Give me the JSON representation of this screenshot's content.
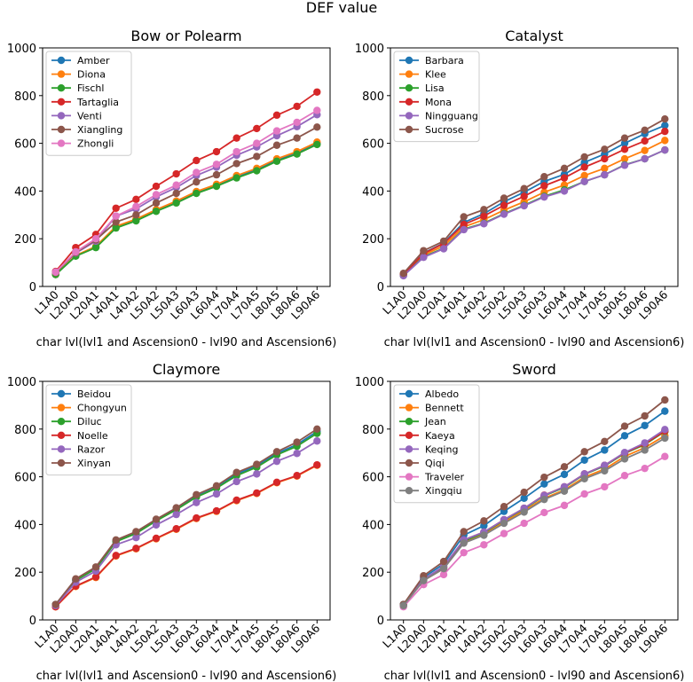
{
  "suptitle": "DEF value",
  "colors": [
    "#1f77b4",
    "#ff7f0e",
    "#2ca02c",
    "#d62728",
    "#9467bd",
    "#8c564b",
    "#e377c2",
    "#7f7f7f"
  ],
  "chart_data": [
    {
      "type": "line",
      "title": "Bow or Polearm",
      "xlabel": "char lvl(lvl1 and Ascension0 - lvl90 and Ascension6)",
      "ylabel": "",
      "ylim": [
        0,
        1000
      ],
      "yticks": [
        0,
        200,
        400,
        600,
        800,
        1000
      ],
      "legend": "upper-left",
      "x": [
        "L1A0",
        "L20A0",
        "L20A1",
        "L40A1",
        "L40A2",
        "L50A2",
        "L50A3",
        "L60A3",
        "L60A4",
        "L70A4",
        "L70A5",
        "L80A5",
        "L80A6",
        "L90A6"
      ],
      "series": [
        {
          "name": "Amber",
          "values": [
            50,
            128,
            165,
            250,
            280,
            320,
            355,
            395,
            425,
            462,
            490,
            530,
            560,
            600
          ]
        },
        {
          "name": "Diona",
          "values": [
            50,
            130,
            168,
            252,
            282,
            322,
            358,
            398,
            428,
            465,
            495,
            535,
            565,
            605
          ]
        },
        {
          "name": "Fischl",
          "values": [
            50,
            127,
            163,
            245,
            275,
            315,
            350,
            390,
            420,
            455,
            485,
            525,
            555,
            595
          ]
        },
        {
          "name": "Tartaglia",
          "values": [
            63,
            163,
            218,
            328,
            365,
            420,
            472,
            528,
            565,
            622,
            662,
            718,
            755,
            815
          ]
        },
        {
          "name": "Venti",
          "values": [
            60,
            140,
            190,
            295,
            325,
            375,
            415,
            465,
            500,
            550,
            585,
            632,
            670,
            720
          ]
        },
        {
          "name": "Xiangling",
          "values": [
            58,
            142,
            195,
            270,
            300,
            350,
            390,
            438,
            468,
            515,
            545,
            592,
            622,
            668
          ]
        },
        {
          "name": "Zhongli",
          "values": [
            60,
            145,
            200,
            295,
            335,
            385,
            425,
            478,
            512,
            565,
            600,
            652,
            688,
            738
          ]
        }
      ]
    },
    {
      "type": "line",
      "title": "Catalyst",
      "xlabel": "char lvl(lvl1 and Ascension0 - lvl90 and Ascension6)",
      "ylabel": "",
      "ylim": [
        0,
        1000
      ],
      "yticks": [
        0,
        200,
        400,
        600,
        800,
        1000
      ],
      "legend": "upper-left",
      "x": [
        "L1A0",
        "L20A0",
        "L20A1",
        "L40A1",
        "L40A2",
        "L50A2",
        "L50A3",
        "L60A3",
        "L60A4",
        "L70A4",
        "L70A5",
        "L80A5",
        "L80A6",
        "L90A6"
      ],
      "series": [
        {
          "name": "Barbara",
          "values": [
            48,
            140,
            182,
            268,
            305,
            355,
            395,
            440,
            470,
            520,
            555,
            600,
            640,
            675
          ]
        },
        {
          "name": "Klee",
          "values": [
            48,
            132,
            170,
            250,
            280,
            320,
            355,
            395,
            425,
            465,
            495,
            535,
            570,
            612
          ]
        },
        {
          "name": "Lisa",
          "values": [
            46,
            125,
            160,
            240,
            265,
            305,
            340,
            378,
            405,
            440,
            468,
            510,
            535,
            572
          ]
        },
        {
          "name": "Mona",
          "values": [
            50,
            138,
            180,
            260,
            295,
            340,
            378,
            422,
            455,
            500,
            535,
            575,
            610,
            650
          ]
        },
        {
          "name": "Ningguang",
          "values": [
            45,
            122,
            158,
            238,
            263,
            303,
            338,
            375,
            400,
            440,
            468,
            508,
            535,
            572
          ]
        },
        {
          "name": "Sucrose",
          "values": [
            55,
            150,
            190,
            292,
            322,
            370,
            410,
            460,
            495,
            543,
            575,
            622,
            655,
            702
          ]
        }
      ]
    },
    {
      "type": "line",
      "title": "Claymore",
      "xlabel": "char lvl(lvl1 and Ascension0 - lvl90 and Ascension6)",
      "ylabel": "",
      "ylim": [
        0,
        1000
      ],
      "yticks": [
        0,
        200,
        400,
        600,
        800,
        1000
      ],
      "legend": "upper-left",
      "x": [
        "L1A0",
        "L20A0",
        "L20A1",
        "L40A1",
        "L40A2",
        "L50A2",
        "L50A3",
        "L60A3",
        "L60A4",
        "L70A4",
        "L70A5",
        "L80A5",
        "L80A6",
        "L90A6"
      ],
      "series": [
        {
          "name": "Beidou",
          "values": [
            65,
            168,
            215,
            330,
            365,
            418,
            465,
            518,
            555,
            612,
            645,
            698,
            735,
            790
          ]
        },
        {
          "name": "Chongyun",
          "values": [
            55,
            140,
            178,
            268,
            298,
            340,
            380,
            425,
            455,
            500,
            530,
            575,
            603,
            648
          ]
        },
        {
          "name": "Diluc",
          "values": [
            63,
            165,
            215,
            328,
            362,
            415,
            462,
            515,
            552,
            605,
            640,
            692,
            728,
            782
          ]
        },
        {
          "name": "Noelle",
          "values": [
            55,
            142,
            180,
            270,
            300,
            342,
            382,
            427,
            457,
            502,
            532,
            577,
            605,
            650
          ]
        },
        {
          "name": "Razor",
          "values": [
            60,
            158,
            205,
            315,
            345,
            398,
            442,
            492,
            528,
            580,
            612,
            665,
            698,
            750
          ]
        },
        {
          "name": "Xinyan",
          "values": [
            65,
            172,
            222,
            335,
            370,
            422,
            470,
            525,
            562,
            618,
            652,
            705,
            745,
            800
          ]
        }
      ]
    },
    {
      "type": "line",
      "title": "Sword",
      "xlabel": "char lvl(lvl1 and Ascension0 - lvl90 and Ascension6)",
      "ylabel": "",
      "ylim": [
        0,
        1000
      ],
      "yticks": [
        0,
        200,
        400,
        600,
        800,
        1000
      ],
      "legend": "upper-left",
      "x": [
        "L1A0",
        "L20A0",
        "L20A1",
        "L40A1",
        "L40A2",
        "L50A2",
        "L50A3",
        "L60A3",
        "L60A4",
        "L70A4",
        "L70A5",
        "L80A5",
        "L80A6",
        "L90A6"
      ],
      "series": [
        {
          "name": "Albedo",
          "values": [
            65,
            178,
            235,
            355,
            395,
            455,
            510,
            570,
            610,
            670,
            712,
            772,
            815,
            875
          ]
        },
        {
          "name": "Bennett",
          "values": [
            62,
            165,
            215,
            325,
            358,
            410,
            458,
            510,
            545,
            598,
            632,
            685,
            722,
            772
          ]
        },
        {
          "name": "Jean",
          "values": [
            63,
            168,
            220,
            330,
            365,
            418,
            465,
            520,
            555,
            610,
            645,
            698,
            735,
            790
          ]
        },
        {
          "name": "Kaeya",
          "values": [
            62,
            170,
            222,
            335,
            368,
            420,
            468,
            523,
            558,
            612,
            648,
            700,
            738,
            792
          ]
        },
        {
          "name": "Keqing",
          "values": [
            63,
            170,
            225,
            335,
            368,
            420,
            468,
            522,
            558,
            612,
            648,
            702,
            742,
            798
          ]
        },
        {
          "name": "Qiqi",
          "values": [
            65,
            185,
            245,
            370,
            415,
            475,
            535,
            598,
            642,
            705,
            748,
            812,
            855,
            922
          ]
        },
        {
          "name": "Traveler",
          "values": [
            55,
            148,
            190,
            282,
            315,
            362,
            405,
            450,
            480,
            528,
            558,
            605,
            635,
            685
          ]
        },
        {
          "name": "Xingqiu",
          "values": [
            60,
            165,
            215,
            322,
            355,
            405,
            452,
            505,
            540,
            592,
            625,
            675,
            712,
            762
          ]
        }
      ]
    }
  ]
}
